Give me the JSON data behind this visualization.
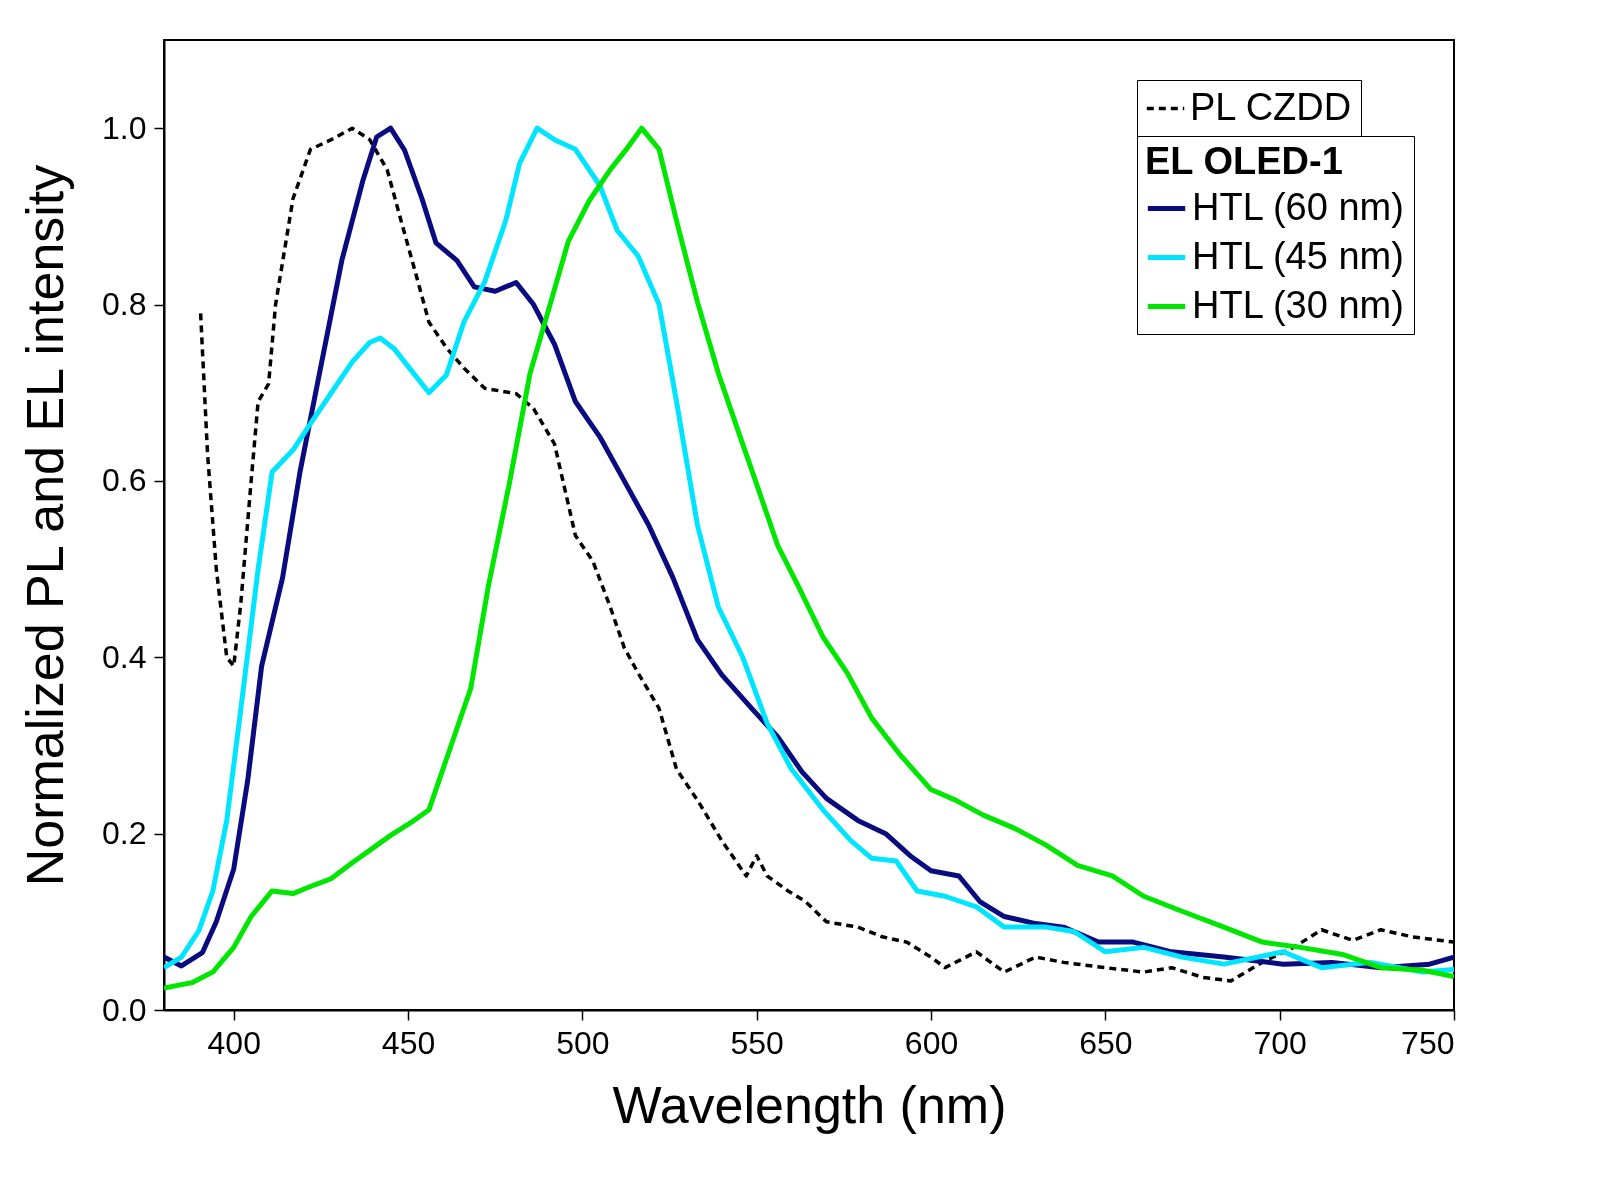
{
  "chart_data": {
    "type": "line",
    "xlabel": "Wavelength (nm)",
    "ylabel": "Normalized PL and EL intensity",
    "legend_title": "EL OLED-1",
    "xlim": [
      380,
      750
    ],
    "xticks": [
      400,
      450,
      500,
      550,
      600,
      650,
      700,
      750
    ],
    "ylim": [
      0,
      1.1
    ],
    "yticks": [
      {
        "value": 0,
        "label": "0.0"
      },
      {
        "value": 0.2,
        "label": "0.2"
      },
      {
        "value": 0.4,
        "label": "0.4"
      },
      {
        "value": 0.6,
        "label": "0.6"
      },
      {
        "value": 0.8,
        "label": "0.8"
      },
      {
        "value": 1,
        "label": "1.0"
      }
    ],
    "grid": false,
    "legend": "top right",
    "marker": "none",
    "series": [
      {
        "name": "PL CZDD",
        "color": "#000000",
        "line_style": "dashed",
        "x": [
          390.5,
          392.5,
          395,
          398,
          400,
          402,
          405,
          407,
          410,
          412,
          417,
          422,
          428,
          434,
          439,
          444,
          448,
          452,
          456,
          461,
          466,
          472,
          481,
          486,
          492,
          498,
          503,
          508,
          512,
          516,
          522,
          527,
          533,
          540,
          547,
          550,
          553,
          559,
          564,
          570,
          579,
          586,
          593,
          600,
          604,
          613,
          621,
          630,
          638,
          650,
          661,
          669,
          678,
          686,
          695,
          704,
          712,
          721,
          729,
          738,
          750
        ],
        "values": [
          0.79,
          0.63,
          0.5,
          0.4,
          0.39,
          0.46,
          0.6,
          0.69,
          0.71,
          0.8,
          0.92,
          0.976,
          0.987,
          1.0,
          0.987,
          0.953,
          0.895,
          0.838,
          0.78,
          0.751,
          0.728,
          0.705,
          0.699,
          0.682,
          0.642,
          0.538,
          0.509,
          0.457,
          0.411,
          0.382,
          0.342,
          0.273,
          0.238,
          0.192,
          0.152,
          0.175,
          0.152,
          0.135,
          0.123,
          0.1,
          0.094,
          0.083,
          0.077,
          0.06,
          0.048,
          0.066,
          0.043,
          0.06,
          0.054,
          0.048,
          0.043,
          0.048,
          0.037,
          0.033,
          0.054,
          0.071,
          0.091,
          0.079,
          0.091,
          0.083,
          0.077
        ]
      },
      {
        "name": "HTL (60 nm)",
        "color": "#0b0b80",
        "line_style": "solid",
        "x": [
          380,
          385,
          391,
          395,
          400,
          404,
          408,
          414,
          419,
          425,
          431,
          437,
          441,
          445,
          449,
          454,
          458,
          464,
          469,
          475,
          481,
          486,
          492,
          498,
          505,
          512,
          519,
          526,
          533,
          540,
          549,
          556,
          563,
          570,
          579,
          587,
          594,
          600,
          608,
          614,
          621,
          630,
          638,
          648,
          658,
          669,
          684,
          701,
          715,
          729,
          743,
          750
        ],
        "values": [
          0.06,
          0.05,
          0.065,
          0.1,
          0.16,
          0.26,
          0.39,
          0.49,
          0.61,
          0.73,
          0.85,
          0.94,
          0.99,
          1.0,
          0.975,
          0.92,
          0.87,
          0.85,
          0.82,
          0.815,
          0.825,
          0.8,
          0.755,
          0.69,
          0.65,
          0.6,
          0.55,
          0.49,
          0.42,
          0.38,
          0.34,
          0.31,
          0.27,
          0.24,
          0.215,
          0.2,
          0.175,
          0.158,
          0.152,
          0.123,
          0.106,
          0.098,
          0.094,
          0.077,
          0.077,
          0.066,
          0.06,
          0.052,
          0.054,
          0.048,
          0.052,
          0.06
        ]
      },
      {
        "name": "HTL (45 nm)",
        "color": "#00e5ff",
        "line_style": "solid",
        "x": [
          380,
          385,
          390,
          394,
          398,
          402,
          407,
          411,
          417,
          422,
          428,
          434,
          439,
          442,
          446,
          452,
          456,
          461,
          466,
          472,
          478,
          482,
          487,
          492,
          498,
          505,
          510,
          516,
          522,
          527,
          533,
          539,
          546,
          553,
          560,
          569,
          577,
          583,
          590,
          596,
          604,
          613,
          621,
          633,
          641,
          650,
          661,
          672,
          684,
          701,
          712,
          726,
          741,
          750
        ],
        "values": [
          0.048,
          0.06,
          0.09,
          0.135,
          0.215,
          0.34,
          0.5,
          0.61,
          0.635,
          0.665,
          0.7,
          0.735,
          0.757,
          0.762,
          0.75,
          0.72,
          0.7,
          0.72,
          0.78,
          0.826,
          0.895,
          0.96,
          1.0,
          0.987,
          0.976,
          0.935,
          0.884,
          0.855,
          0.8,
          0.69,
          0.55,
          0.457,
          0.4,
          0.325,
          0.273,
          0.227,
          0.192,
          0.172,
          0.169,
          0.135,
          0.129,
          0.117,
          0.094,
          0.094,
          0.089,
          0.066,
          0.071,
          0.06,
          0.052,
          0.066,
          0.048,
          0.054,
          0.043,
          0.046
        ]
      },
      {
        "name": "HTL (30 nm)",
        "color": "#00e600",
        "line_style": "solid",
        "x": [
          380,
          388,
          394,
          400,
          405,
          411,
          417,
          422,
          428,
          434,
          439,
          445,
          451,
          456,
          462,
          468,
          473,
          479,
          485,
          490,
          496,
          502,
          508,
          513,
          517,
          522,
          527,
          533,
          539,
          545,
          550,
          556,
          562,
          569,
          576,
          583,
          591,
          600,
          607,
          615,
          624,
          633,
          642,
          652,
          661,
          672,
          684,
          695,
          706,
          718,
          729,
          741,
          750
        ],
        "values": [
          0.025,
          0.031,
          0.043,
          0.071,
          0.106,
          0.135,
          0.132,
          0.14,
          0.149,
          0.167,
          0.181,
          0.198,
          0.213,
          0.227,
          0.296,
          0.365,
          0.48,
          0.596,
          0.722,
          0.79,
          0.872,
          0.918,
          0.953,
          0.978,
          1.0,
          0.976,
          0.895,
          0.803,
          0.722,
          0.653,
          0.596,
          0.527,
          0.48,
          0.423,
          0.382,
          0.331,
          0.29,
          0.25,
          0.238,
          0.221,
          0.206,
          0.187,
          0.164,
          0.152,
          0.129,
          0.112,
          0.094,
          0.077,
          0.071,
          0.063,
          0.048,
          0.045,
          0.038
        ]
      }
    ]
  }
}
